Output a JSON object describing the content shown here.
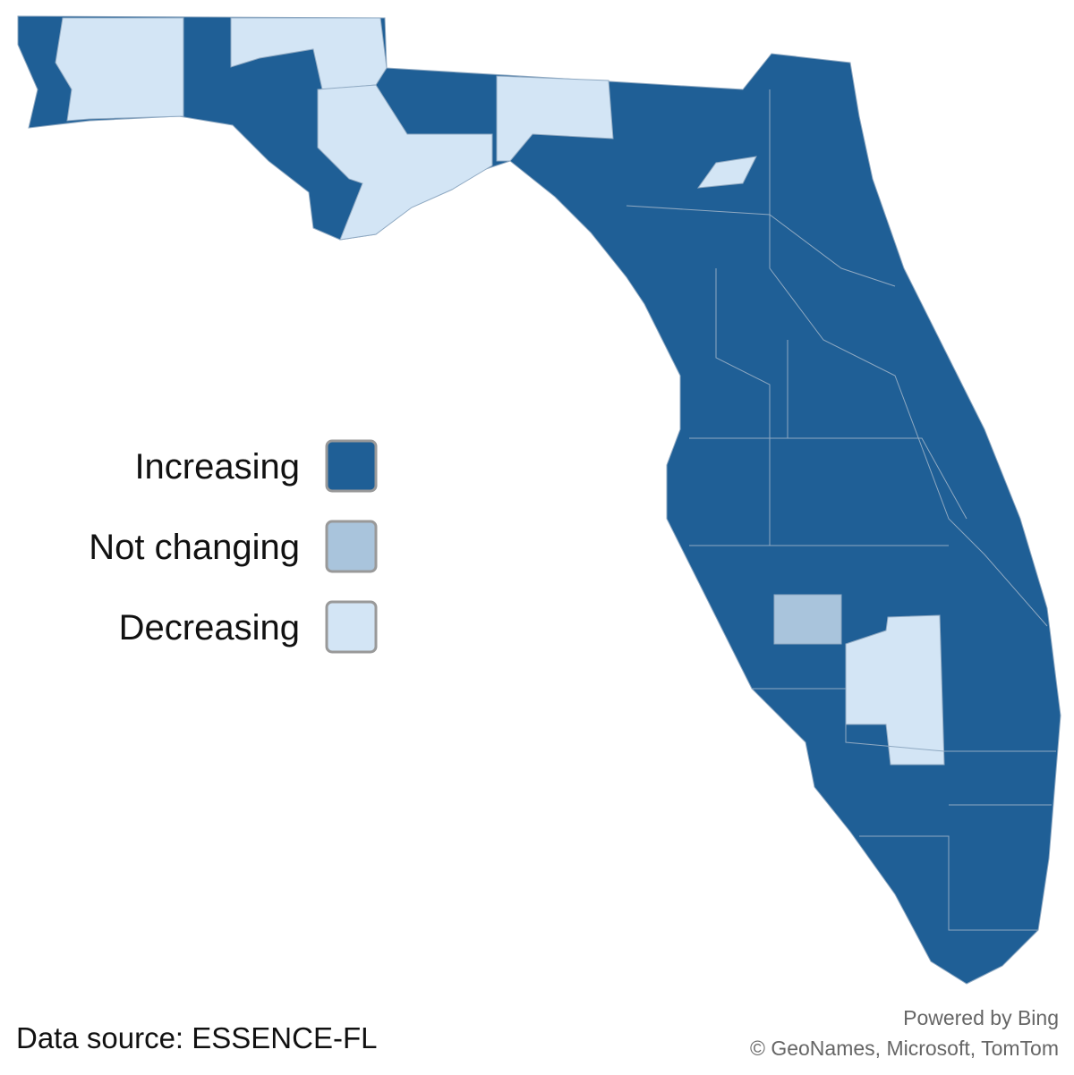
{
  "legend": [
    {
      "label": "Increasing",
      "color": "#1f5f96"
    },
    {
      "label": "Not changing",
      "color": "#a9c4dc"
    },
    {
      "label": "Decreasing",
      "color": "#d3e5f5"
    }
  ],
  "source": "Data source: ESSENCE-FL",
  "attribution": [
    "Powered by Bing",
    "© GeoNames, Microsoft, TomTom"
  ]
}
